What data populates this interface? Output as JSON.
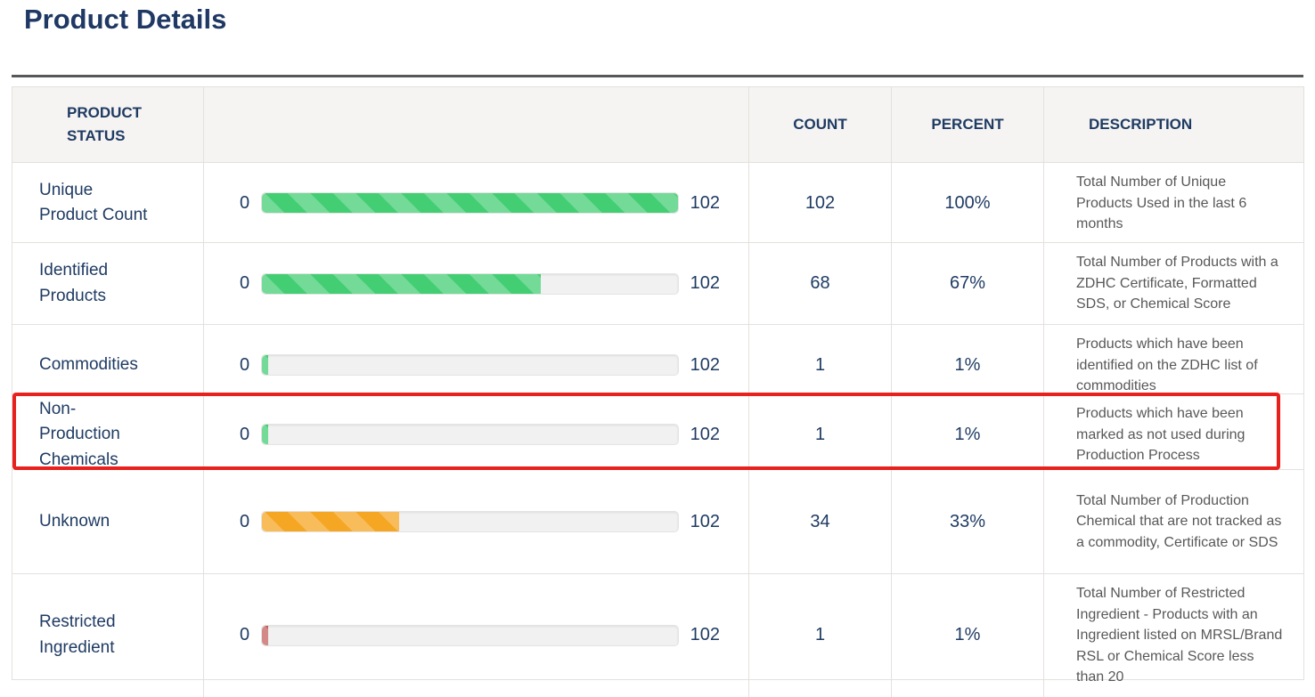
{
  "page": {
    "title": "Product Details"
  },
  "colors": {
    "green": "#44ce74",
    "orange": "#f5a623",
    "red": "#c4625f",
    "highlight_border": "#e8211d",
    "heading_navy": "#1f3864",
    "description_gray": "#58585a"
  },
  "table": {
    "headers": {
      "status": "PRODUCT STATUS",
      "bar": "",
      "count": "COUNT",
      "percent": "PERCENT",
      "description": "DESCRIPTION"
    },
    "rows": [
      {
        "label": "Unique Product Count",
        "bar": {
          "min": "0",
          "max": "102",
          "fill_percent": 100,
          "color": "green"
        },
        "count": "102",
        "percent": "100%",
        "description": "Total Number of Unique Products Used in the last 6 months",
        "highlighted": false
      },
      {
        "label": "Identified Products",
        "bar": {
          "min": "0",
          "max": "102",
          "fill_percent": 67,
          "color": "green"
        },
        "count": "68",
        "percent": "67%",
        "description": "Total Number of Products with a ZDHC Certificate, Formatted SDS, or Chemical Score",
        "highlighted": false
      },
      {
        "label": "Commodities",
        "bar": {
          "min": "0",
          "max": "102",
          "fill_percent": 1,
          "color": "green"
        },
        "count": "1",
        "percent": "1%",
        "description": "Products which have been identified on the ZDHC list of commodities",
        "highlighted": false
      },
      {
        "label": "Non-Production Chemicals",
        "bar": {
          "min": "0",
          "max": "102",
          "fill_percent": 1,
          "color": "green"
        },
        "count": "1",
        "percent": "1%",
        "description": "Products which have been marked as not used during Production Process",
        "highlighted": true
      },
      {
        "label": "Unknown",
        "bar": {
          "min": "0",
          "max": "102",
          "fill_percent": 33,
          "color": "orange"
        },
        "count": "34",
        "percent": "33%",
        "description": "Total Number of Production Chemical that are not tracked as a commodity, Certificate or SDS",
        "highlighted": false
      },
      {
        "label": "Restricted Ingredient",
        "bar": {
          "min": "0",
          "max": "102",
          "fill_percent": 1,
          "color": "red"
        },
        "count": "1",
        "percent": "1%",
        "description": "Total Number of Restricted Ingredient - Products with an Ingredient listed on MRSL/Brand RSL or Chemical Score less than 20",
        "highlighted": false
      }
    ]
  }
}
